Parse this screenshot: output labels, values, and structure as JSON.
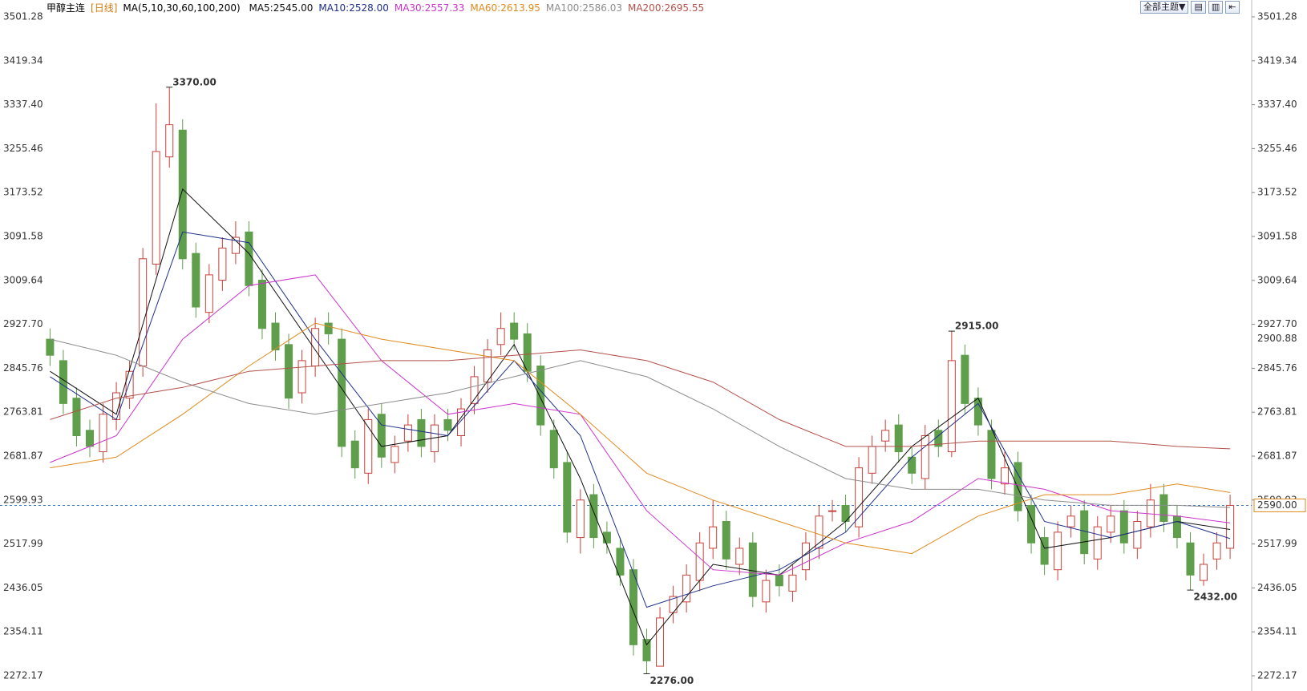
{
  "chart_data": {
    "type": "candlestick",
    "header": {
      "symbol": "甲醇主连",
      "period": "[日线]",
      "ma_label": "MA(5,10,30,60,100,200)",
      "theme_button": "全部主题▼"
    },
    "ylim": [
      2272.17,
      3501.28
    ],
    "yticks": [
      2272.17,
      2354.11,
      2436.05,
      2517.99,
      2599.93,
      2681.87,
      2763.81,
      2845.76,
      {
        "value": 2927.7,
        "label": "2927.70"
      },
      3009.64,
      3091.58,
      3173.52,
      3255.46,
      {
        "value": 3337.4,
        "label": "3337.40"
      },
      3419.34,
      3501.28
    ],
    "up_color": "#c9403a",
    "down_color": "#5f9e4b",
    "open": [
      2900,
      2860,
      2790,
      2730,
      2690,
      2750,
      2790,
      2850,
      3040,
      3240,
      3290,
      3060,
      2950,
      3010,
      3060,
      3100,
      3010,
      2930,
      2890,
      2800,
      2850,
      2930,
      2900,
      2710,
      2650,
      2760,
      2670,
      2710,
      2750,
      2690,
      2750,
      2720,
      2780,
      2820,
      2890,
      2930,
      2910,
      2850,
      2730,
      2670,
      2530,
      2610,
      2540,
      2510,
      2470,
      2340,
      2290,
      2390,
      2410,
      2450,
      2510,
      2560,
      2480,
      2520,
      2410,
      2460,
      2430,
      2470,
      2510,
      2580,
      2590,
      2550,
      2650,
      2710,
      2740,
      2680,
      2640,
      2730,
      2690,
      2870,
      2790,
      2730,
      2630,
      2670,
      2590,
      2530,
      2470,
      2550,
      2580,
      2490,
      2540,
      2580,
      2510,
      2550,
      2610,
      2570,
      2520,
      2450,
      2490,
      2510
    ],
    "high": [
      2920,
      2880,
      2810,
      2750,
      2780,
      2820,
      2860,
      3070,
      3340,
      3370,
      3310,
      3080,
      3040,
      3090,
      3120,
      3120,
      3030,
      2950,
      2910,
      2880,
      2940,
      2950,
      2920,
      2730,
      2770,
      2780,
      2720,
      2760,
      2770,
      2760,
      2770,
      2790,
      2850,
      2900,
      2950,
      2950,
      2930,
      2870,
      2750,
      2690,
      2620,
      2630,
      2560,
      2530,
      2490,
      2360,
      2400,
      2440,
      2480,
      2540,
      2600,
      2580,
      2530,
      2540,
      2470,
      2480,
      2480,
      2540,
      2590,
      2600,
      2610,
      2680,
      2720,
      2750,
      2760,
      2700,
      2740,
      2750,
      2915,
      2890,
      2810,
      2750,
      2690,
      2690,
      2610,
      2550,
      2560,
      2590,
      2600,
      2570,
      2590,
      2600,
      2580,
      2630,
      2630,
      2590,
      2540,
      2500,
      2540,
      2610
    ],
    "low": [
      2850,
      2760,
      2700,
      2680,
      2670,
      2730,
      2770,
      2830,
      3020,
      3220,
      3030,
      2940,
      2930,
      2990,
      3040,
      2980,
      2900,
      2860,
      2770,
      2780,
      2830,
      2890,
      2680,
      2640,
      2630,
      2660,
      2650,
      2690,
      2680,
      2670,
      2710,
      2700,
      2760,
      2800,
      2870,
      2880,
      2820,
      2720,
      2640,
      2520,
      2500,
      2510,
      2500,
      2440,
      2310,
      2276,
      2290,
      2370,
      2390,
      2430,
      2490,
      2470,
      2460,
      2400,
      2390,
      2420,
      2410,
      2450,
      2490,
      2560,
      2540,
      2530,
      2630,
      2690,
      2670,
      2630,
      2620,
      2680,
      2680,
      2760,
      2720,
      2620,
      2610,
      2560,
      2500,
      2460,
      2450,
      2530,
      2480,
      2470,
      2520,
      2500,
      2490,
      2530,
      2540,
      2510,
      2432,
      2440,
      2470,
      2490
    ],
    "close": [
      2870,
      2780,
      2720,
      2700,
      2760,
      2800,
      2840,
      3050,
      3250,
      3300,
      3050,
      2960,
      3020,
      3070,
      3090,
      3000,
      2920,
      2880,
      2790,
      2860,
      2920,
      2910,
      2700,
      2660,
      2750,
      2680,
      2700,
      2740,
      2700,
      2740,
      2730,
      2770,
      2830,
      2880,
      2920,
      2900,
      2840,
      2740,
      2660,
      2540,
      2600,
      2530,
      2520,
      2460,
      2330,
      2300,
      2380,
      2420,
      2460,
      2520,
      2550,
      2490,
      2510,
      2420,
      2450,
      2440,
      2460,
      2520,
      2570,
      2580,
      2560,
      2660,
      2700,
      2730,
      2690,
      2650,
      2720,
      2700,
      2860,
      2780,
      2740,
      2640,
      2660,
      2580,
      2520,
      2480,
      2540,
      2570,
      2500,
      2550,
      2570,
      2520,
      2560,
      2600,
      2560,
      2530,
      2460,
      2480,
      2520,
      2590
    ],
    "series": [
      {
        "name": "MA5:2545.00",
        "color": "#111111",
        "x": [
          0,
          5,
          10,
          15,
          20,
          25,
          30,
          35,
          40,
          45,
          50,
          55,
          60,
          65,
          70,
          75,
          80,
          85,
          89
        ],
        "values": [
          2840,
          2760,
          3180,
          3060,
          2880,
          2700,
          2720,
          2890,
          2640,
          2330,
          2480,
          2460,
          2560,
          2700,
          2790,
          2510,
          2530,
          2560,
          2545
        ]
      },
      {
        "name": "MA10:2528.00",
        "color": "#1f2f8a",
        "x": [
          0,
          5,
          10,
          15,
          20,
          25,
          30,
          35,
          40,
          45,
          50,
          55,
          60,
          65,
          70,
          75,
          80,
          85,
          89
        ],
        "values": [
          2830,
          2750,
          3100,
          3080,
          2900,
          2740,
          2720,
          2860,
          2720,
          2400,
          2440,
          2470,
          2540,
          2680,
          2780,
          2560,
          2530,
          2560,
          2528
        ]
      },
      {
        "name": "MA30:2557.33",
        "color": "#cc33cc",
        "x": [
          0,
          5,
          10,
          15,
          20,
          25,
          30,
          35,
          40,
          45,
          50,
          55,
          60,
          65,
          70,
          75,
          80,
          85,
          89
        ],
        "values": [
          2670,
          2720,
          2900,
          3000,
          3020,
          2860,
          2760,
          2780,
          2760,
          2580,
          2470,
          2460,
          2520,
          2560,
          2640,
          2620,
          2580,
          2570,
          2557.33
        ]
      },
      {
        "name": "MA60:2613.95",
        "color": "#e08a1e",
        "x": [
          0,
          5,
          10,
          15,
          20,
          25,
          30,
          35,
          40,
          45,
          50,
          55,
          60,
          65,
          70,
          75,
          80,
          85,
          89
        ],
        "values": [
          2660,
          2680,
          2760,
          2850,
          2930,
          2900,
          2880,
          2860,
          2760,
          2650,
          2600,
          2560,
          2520,
          2500,
          2570,
          2610,
          2610,
          2630,
          2613.95
        ]
      },
      {
        "name": "MA100:2586.03",
        "color": "#8c8c8c",
        "x": [
          0,
          5,
          10,
          15,
          20,
          25,
          30,
          35,
          40,
          45,
          50,
          55,
          60,
          65,
          70,
          75,
          80,
          85,
          89
        ],
        "values": [
          2900,
          2870,
          2820,
          2780,
          2760,
          2780,
          2800,
          2830,
          2860,
          2830,
          2770,
          2700,
          2640,
          2620,
          2620,
          2600,
          2590,
          2590,
          2586.03
        ]
      },
      {
        "name": "MA200:2695.55",
        "color": "#b5504a",
        "x": [
          0,
          5,
          10,
          15,
          20,
          25,
          30,
          35,
          40,
          45,
          50,
          55,
          60,
          65,
          70,
          75,
          80,
          85,
          89
        ],
        "values": [
          2750,
          2790,
          2810,
          2840,
          2850,
          2860,
          2860,
          2870,
          2880,
          2860,
          2820,
          2750,
          2700,
          2700,
          2710,
          2710,
          2710,
          2700,
          2695.55
        ]
      }
    ],
    "annotations": [
      {
        "index": 9,
        "value": 3370,
        "label": "3370.00",
        "color": "#c9403a"
      },
      {
        "index": 68,
        "value": 2915,
        "label": "2915.00",
        "color": "#c9403a"
      },
      {
        "index": 45,
        "value": 2276,
        "label": "2276.00",
        "color": "#5f9e4b"
      },
      {
        "index": 86,
        "value": 2432,
        "label": "2432.00",
        "color": "#5f9e4b"
      }
    ],
    "ma_tag": {
      "value": 2900.88,
      "label": "2900.88",
      "color": "#e08a1e"
    },
    "last_price": {
      "value": 2590,
      "label": "2590.00",
      "color": "#e08a1e"
    }
  }
}
